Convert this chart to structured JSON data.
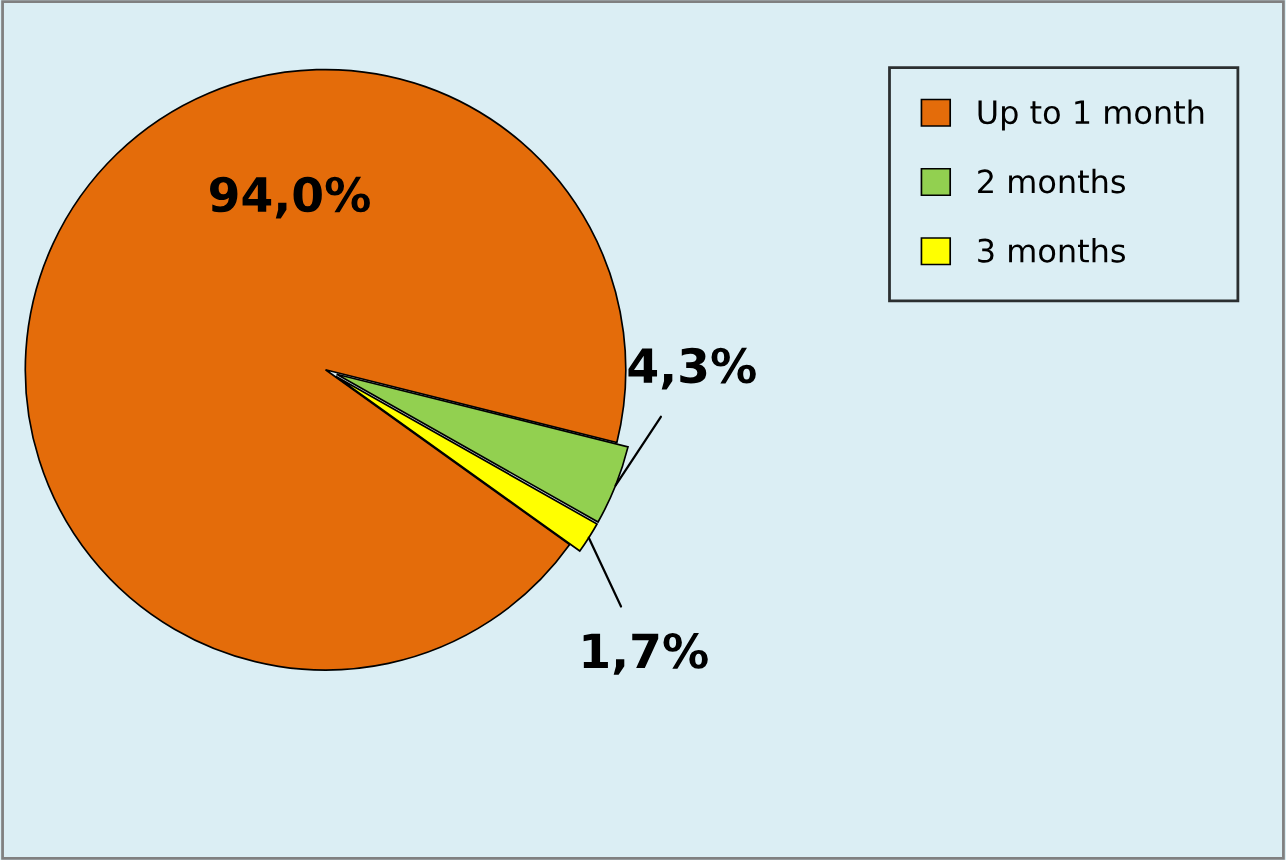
{
  "chart_data": {
    "type": "pie",
    "categories": [
      "Up to 1 month",
      "2 months",
      "3 months"
    ],
    "values": [
      94.0,
      4.3,
      1.7
    ],
    "colors": [
      "#e46c0a",
      "#92d050",
      "#ffff00"
    ],
    "value_labels": [
      "94,0%",
      "4,3%",
      "1,7%"
    ],
    "legend": "top right"
  }
}
